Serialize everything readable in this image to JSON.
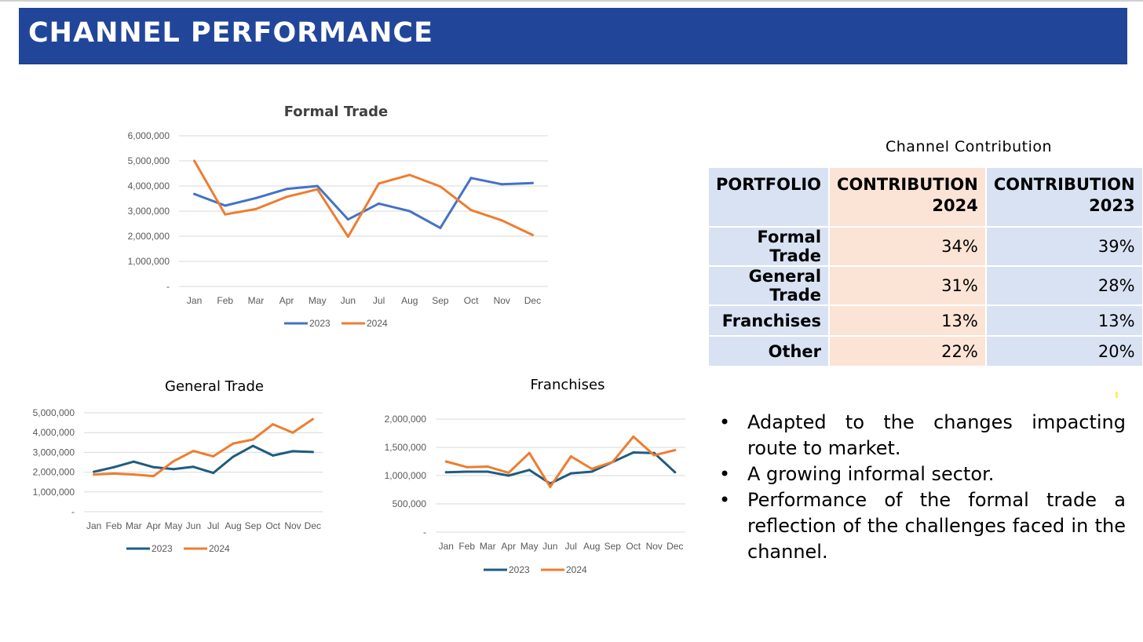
{
  "header": {
    "title": "CHANNEL PERFORMANCE"
  },
  "colors": {
    "banner": "#214699",
    "series_2023_formal": "#4472c4",
    "series_2023_other": "#1f5c7f",
    "series_2024": "#ed7d31"
  },
  "chart_data": [
    {
      "type": "line",
      "title": "Formal Trade",
      "categories": [
        "Jan",
        "Feb",
        "Mar",
        "Apr",
        "May",
        "Jun",
        "Jul",
        "Aug",
        "Sep",
        "Oct",
        "Nov",
        "Dec"
      ],
      "ylim": [
        0,
        6000000
      ],
      "yticks": [
        "-",
        "1,000,000",
        "2,000,000",
        "3,000,000",
        "4,000,000",
        "5,000,000",
        "6,000,000"
      ],
      "grid": true,
      "legend": "bottom",
      "series": [
        {
          "name": "2023",
          "values": [
            3680000,
            3220000,
            3520000,
            3880000,
            4000000,
            2670000,
            3300000,
            3000000,
            2330000,
            4320000,
            4070000,
            4120000
          ]
        },
        {
          "name": "2024",
          "values": [
            5000000,
            2870000,
            3080000,
            3570000,
            3870000,
            1980000,
            4100000,
            4440000,
            3980000,
            3040000,
            2630000,
            2050000
          ]
        }
      ]
    },
    {
      "type": "line",
      "title": "General Trade",
      "categories": [
        "Jan",
        "Feb",
        "Mar",
        "Apr",
        "May",
        "Jun",
        "Jul",
        "Aug",
        "Sep",
        "Oct",
        "Nov",
        "Dec"
      ],
      "ylim": [
        0,
        5000000
      ],
      "yticks": [
        "-",
        "1,000,000",
        "2,000,000",
        "3,000,000",
        "4,000,000",
        "5,000,000"
      ],
      "grid": true,
      "legend": "bottom",
      "series": [
        {
          "name": "2023",
          "values": [
            2020000,
            2250000,
            2530000,
            2250000,
            2150000,
            2270000,
            1960000,
            2780000,
            3330000,
            2840000,
            3060000,
            3020000
          ]
        },
        {
          "name": "2024",
          "values": [
            1880000,
            1930000,
            1880000,
            1800000,
            2550000,
            3070000,
            2800000,
            3450000,
            3650000,
            4420000,
            4000000,
            4680000
          ]
        }
      ]
    },
    {
      "type": "line",
      "title": "Franchises",
      "categories": [
        "Jan",
        "Feb",
        "Mar",
        "Apr",
        "May",
        "Jun",
        "Jul",
        "Aug",
        "Sep",
        "Oct",
        "Nov",
        "Dec"
      ],
      "ylim": [
        0,
        2000000
      ],
      "yticks": [
        "-",
        "500,000",
        "1,000,000",
        "1,500,000",
        "2,000,000"
      ],
      "grid": true,
      "legend": "bottom",
      "series": [
        {
          "name": "2023",
          "values": [
            1060000,
            1070000,
            1070000,
            1000000,
            1100000,
            860000,
            1040000,
            1070000,
            1240000,
            1410000,
            1400000,
            1060000
          ]
        },
        {
          "name": "2024",
          "values": [
            1250000,
            1150000,
            1160000,
            1050000,
            1400000,
            800000,
            1340000,
            1120000,
            1240000,
            1690000,
            1360000,
            1450000
          ]
        }
      ]
    }
  ],
  "table": {
    "title": "Channel  Contribution",
    "headers": [
      "PORTFOLIO",
      "CONTRIBUTION 2024",
      "CONTRIBUTION 2023"
    ],
    "header_lines": [
      [
        "PORTFOLIO",
        ""
      ],
      [
        "CONTRIBUTION",
        "2024"
      ],
      [
        "CONTRIBUTION",
        "2023"
      ]
    ],
    "rows": [
      [
        "Formal Trade",
        "34%",
        "39%"
      ],
      [
        "General Trade",
        "31%",
        "28%"
      ],
      [
        "Franchises",
        "13%",
        "13%"
      ],
      [
        "Other",
        "22%",
        "20%"
      ]
    ]
  },
  "bullets": [
    "Adapted to the changes impacting route to market.",
    "A growing informal sector.",
    "Performance of the formal trade a reflection of the challenges faced in the channel."
  ],
  "bullet_glyph": "•"
}
